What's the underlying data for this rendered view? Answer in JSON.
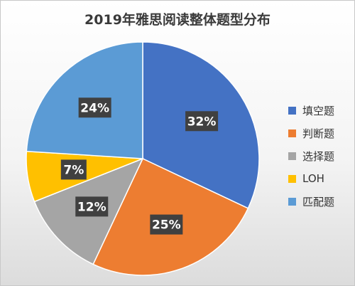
{
  "chart_data": {
    "type": "pie",
    "title": "2019年雅思阅读整体题型分布",
    "slices": [
      {
        "name": "填空题",
        "value": 32,
        "label": "32%",
        "color": "#4472C4"
      },
      {
        "name": "判断题",
        "value": 25,
        "label": "25%",
        "color": "#ED7D31"
      },
      {
        "name": "选择题",
        "value": 12,
        "label": "12%",
        "color": "#A5A5A5"
      },
      {
        "name": "LOH",
        "value": 7,
        "label": "7%",
        "color": "#FFC000"
      },
      {
        "name": "匹配题",
        "value": 24,
        "label": "24%",
        "color": "#5B9BD5"
      }
    ],
    "legend_position": "right",
    "start_angle_deg": 0,
    "direction": "clockwise"
  }
}
